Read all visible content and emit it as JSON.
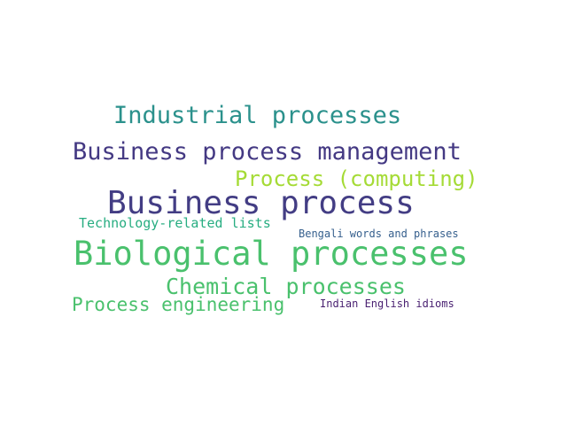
{
  "word_cloud": {
    "words": [
      {
        "text": "Industrial processes",
        "color": "#2b918c"
      },
      {
        "text": "Business process management",
        "color": "#443983"
      },
      {
        "text": "Process (computing)",
        "color": "#a5db36"
      },
      {
        "text": "Business process",
        "color": "#433d84"
      },
      {
        "text": "Technology-related lists",
        "color": "#27ad81"
      },
      {
        "text": "Bengali words and phrases",
        "color": "#355f8d"
      },
      {
        "text": "Biological processes",
        "color": "#4ac16d"
      },
      {
        "text": "Chemical processes",
        "color": "#4ac16d"
      },
      {
        "text": "Process engineering",
        "color": "#4ac16d"
      },
      {
        "text": "Indian English idioms",
        "color": "#481f70"
      }
    ]
  }
}
